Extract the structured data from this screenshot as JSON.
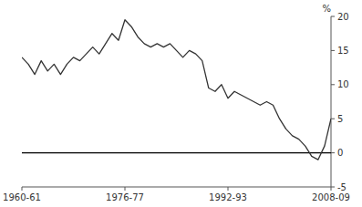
{
  "chart_data": {
    "type": "line",
    "ylabel": "%",
    "x": [
      0,
      1,
      2,
      3,
      4,
      5,
      6,
      7,
      8,
      9,
      10,
      11,
      12,
      13,
      14,
      15,
      16,
      17,
      18,
      19,
      20,
      21,
      22,
      23,
      24,
      25,
      26,
      27,
      28,
      29,
      30,
      31,
      32,
      33,
      34,
      35,
      36,
      37,
      38,
      39,
      40,
      41,
      42,
      43,
      44,
      45,
      46,
      47,
      48
    ],
    "values": [
      14.0,
      13.0,
      11.5,
      13.5,
      12.0,
      13.0,
      11.5,
      13.0,
      14.0,
      13.5,
      14.5,
      15.5,
      14.5,
      16.0,
      17.5,
      16.5,
      19.5,
      18.5,
      17.0,
      16.0,
      15.5,
      16.0,
      15.5,
      16.0,
      15.0,
      14.0,
      15.0,
      14.5,
      13.5,
      9.5,
      9.0,
      10.0,
      8.0,
      9.0,
      8.5,
      8.0,
      7.5,
      7.0,
      7.5,
      7.0,
      5.0,
      3.5,
      2.5,
      2.0,
      1.0,
      -0.5,
      -1.0,
      1.0,
      5.0
    ],
    "color": "#333333",
    "xlim": [
      0,
      48
    ],
    "xticks": [
      {
        "value": 0,
        "label": "1960-61"
      },
      {
        "value": 16,
        "label": "1976-77"
      },
      {
        "value": 32,
        "label": "1992-93"
      },
      {
        "value": 48,
        "label": "2008-09"
      }
    ],
    "ylim": [
      -5,
      20
    ],
    "yticks": [
      -5,
      0,
      5,
      10,
      15,
      20
    ],
    "grid": false
  }
}
